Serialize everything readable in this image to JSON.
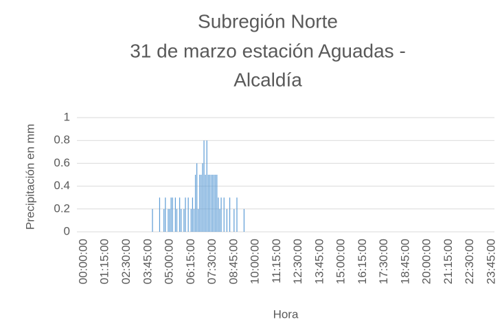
{
  "chart_data": {
    "type": "bar",
    "title": [
      "Subregión Norte",
      "31 de marzo estación Aguadas -",
      "Alcaldía"
    ],
    "y_label": "Precipitación en mm",
    "x_label": "Hora",
    "color": "#5b9bd5",
    "grid": true,
    "ylim": [
      0,
      1
    ],
    "yticks": [
      0,
      0.2,
      0.4,
      0.6,
      0.8,
      1
    ],
    "categories": [
      "00:00:00",
      null,
      null,
      null,
      null,
      null,
      null,
      null,
      null,
      null,
      null,
      null,
      null,
      null,
      null,
      "01:15:00",
      null,
      null,
      null,
      null,
      null,
      null,
      null,
      null,
      null,
      null,
      null,
      null,
      null,
      null,
      "02:30:00",
      null,
      null,
      null,
      null,
      null,
      null,
      null,
      null,
      null,
      null,
      null,
      null,
      null,
      null,
      "03:45:00",
      null,
      null,
      null,
      null,
      null,
      null,
      null,
      null,
      null,
      null,
      null,
      null,
      null,
      null,
      "05:00:00",
      null,
      null,
      null,
      null,
      null,
      null,
      null,
      null,
      null,
      null,
      null,
      null,
      null,
      null,
      "06:15:00",
      null,
      null,
      null,
      null,
      null,
      null,
      null,
      null,
      null,
      null,
      null,
      null,
      null,
      null,
      "07:30:00",
      null,
      null,
      null,
      null,
      null,
      null,
      null,
      null,
      null,
      null,
      null,
      null,
      null,
      null,
      "08:45:00",
      null,
      null,
      null,
      null,
      null,
      null,
      null,
      null,
      null,
      null,
      null,
      null,
      null,
      null,
      "10:00:00",
      null,
      null,
      null,
      null,
      null,
      null,
      null,
      null,
      null,
      null,
      null,
      null,
      null,
      null,
      "11:15:00",
      null,
      null,
      null,
      null,
      null,
      null,
      null,
      null,
      null,
      null,
      null,
      null,
      null,
      null,
      "12:30:00",
      null,
      null,
      null,
      null,
      null,
      null,
      null,
      null,
      null,
      null,
      null,
      null,
      null,
      null,
      "13:45:00",
      null,
      null,
      null,
      null,
      null,
      null,
      null,
      null,
      null,
      null,
      null,
      null,
      null,
      null,
      "15:00:00",
      null,
      null,
      null,
      null,
      null,
      null,
      null,
      null,
      null,
      null,
      null,
      null,
      null,
      null,
      "16:15:00",
      null,
      null,
      null,
      null,
      null,
      null,
      null,
      null,
      null,
      null,
      null,
      null,
      null,
      null,
      "17:30:00",
      null,
      null,
      null,
      null,
      null,
      null,
      null,
      null,
      null,
      null,
      null,
      null,
      null,
      null,
      "18:45:00",
      null,
      null,
      null,
      null,
      null,
      null,
      null,
      null,
      null,
      null,
      null,
      null,
      null,
      null,
      "20:00:00",
      null,
      null,
      null,
      null,
      null,
      null,
      null,
      null,
      null,
      null,
      null,
      null,
      null,
      null,
      "21:15:00",
      null,
      null,
      null,
      null,
      null,
      null,
      null,
      null,
      null,
      null,
      null,
      null,
      null,
      null,
      "22:30:00",
      null,
      null,
      null,
      null,
      null,
      null,
      null,
      null,
      null,
      null,
      null,
      null,
      null,
      null,
      "23:45:00",
      null,
      null
    ],
    "values": [
      0,
      0,
      0,
      0,
      0,
      0,
      0,
      0,
      0,
      0,
      0,
      0,
      0,
      0,
      0,
      0,
      0,
      0,
      0,
      0,
      0,
      0,
      0,
      0,
      0,
      0,
      0,
      0,
      0,
      0,
      0,
      0,
      0,
      0,
      0,
      0,
      0,
      0,
      0,
      0,
      0,
      0,
      0,
      0,
      0,
      0,
      0,
      0,
      0.2,
      0,
      0,
      0,
      0,
      0.3,
      0,
      0,
      0.2,
      0.3,
      0,
      0.2,
      0.2,
      0.3,
      0.3,
      0,
      0.3,
      0.2,
      0,
      0.3,
      0.2,
      0,
      0.2,
      0.3,
      0,
      0.3,
      0,
      0.2,
      0.3,
      0.2,
      0.5,
      0.6,
      0.2,
      0.5,
      0.5,
      0.6,
      0.8,
      0.5,
      0.8,
      0.5,
      0.5,
      0.5,
      0.5,
      0.5,
      0.5,
      0.5,
      0.3,
      0.2,
      0.3,
      0,
      0.3,
      0,
      0.2,
      0,
      0.3,
      0,
      0,
      0.2,
      0,
      0.3,
      0,
      0,
      0,
      0,
      0.2,
      0,
      0,
      0,
      0,
      0,
      0,
      0,
      0,
      0,
      0,
      0,
      0,
      0,
      0,
      0,
      0,
      0,
      0,
      0,
      0,
      0,
      0,
      0,
      0,
      0,
      0,
      0,
      0,
      0,
      0,
      0,
      0,
      0,
      0,
      0,
      0,
      0,
      0,
      0,
      0,
      0,
      0,
      0,
      0,
      0,
      0,
      0,
      0,
      0,
      0,
      0,
      0,
      0,
      0,
      0,
      0,
      0,
      0,
      0,
      0,
      0,
      0,
      0,
      0,
      0,
      0,
      0,
      0,
      0,
      0,
      0,
      0,
      0,
      0,
      0,
      0,
      0,
      0,
      0,
      0,
      0,
      0,
      0,
      0,
      0,
      0,
      0,
      0,
      0,
      0,
      0,
      0,
      0,
      0,
      0,
      0,
      0,
      0,
      0,
      0,
      0,
      0,
      0,
      0,
      0,
      0,
      0,
      0,
      0,
      0,
      0,
      0,
      0,
      0,
      0,
      0,
      0,
      0,
      0,
      0,
      0,
      0,
      0,
      0,
      0,
      0,
      0,
      0,
      0,
      0,
      0,
      0,
      0,
      0,
      0,
      0,
      0,
      0,
      0,
      0,
      0,
      0,
      0,
      0,
      0,
      0,
      0,
      0,
      0,
      0,
      0,
      0,
      0,
      0,
      0,
      0,
      0,
      0,
      0,
      0,
      0,
      0,
      0,
      0,
      0,
      0,
      0,
      0,
      0,
      0,
      0,
      0,
      0,
      0,
      0
    ]
  }
}
